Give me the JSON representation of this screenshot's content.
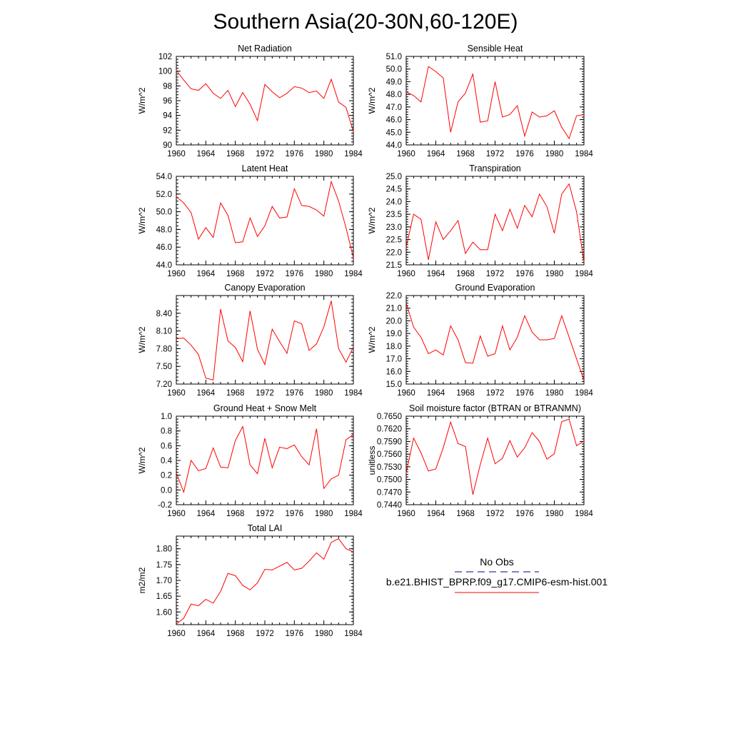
{
  "title": "Southern Asia(20-30N,60-120E)",
  "colors": {
    "model": "#ff0000",
    "obs": "#000080"
  },
  "legend": {
    "obs_label": "No Obs",
    "model_label": "b.e21.BHIST_BPRP.f09_g17.CMIP6-esm-hist.001"
  },
  "chart_data": [
    {
      "type": "line",
      "title": "Net Radiation",
      "ylabel": "W/m^2",
      "xlim": [
        1960,
        1984
      ],
      "ylim": [
        90,
        102
      ],
      "xticks": [
        "1960",
        "1964",
        "1968",
        "1972",
        "1976",
        "1980",
        "1984"
      ],
      "yticks": [
        "90",
        "92",
        "94",
        "96",
        "98",
        "100",
        "102"
      ],
      "x": [
        1960,
        1961,
        1962,
        1963,
        1964,
        1965,
        1966,
        1967,
        1968,
        1969,
        1970,
        1971,
        1972,
        1973,
        1974,
        1975,
        1976,
        1977,
        1978,
        1979,
        1980,
        1981,
        1982,
        1983,
        1984
      ],
      "series": [
        {
          "values": [
            100.1,
            98.8,
            97.6,
            97.4,
            98.3,
            97.0,
            96.3,
            97.4,
            95.2,
            97.1,
            95.5,
            93.3,
            98.2,
            97.2,
            96.4,
            97.0,
            97.9,
            97.7,
            97.1,
            97.3,
            96.3,
            98.9,
            95.8,
            95.1,
            91.8
          ]
        }
      ]
    },
    {
      "type": "line",
      "title": "Sensible Heat",
      "ylabel": "W/m^2",
      "xlim": [
        1960,
        1984
      ],
      "ylim": [
        44.0,
        51.0
      ],
      "xticks": [
        "1960",
        "1964",
        "1968",
        "1972",
        "1976",
        "1980",
        "1984"
      ],
      "yticks": [
        "44.0",
        "45.0",
        "46.0",
        "47.0",
        "48.0",
        "49.0",
        "50.0",
        "51.0"
      ],
      "x": [
        1960,
        1961,
        1962,
        1963,
        1964,
        1965,
        1966,
        1967,
        1968,
        1969,
        1970,
        1971,
        1972,
        1973,
        1974,
        1975,
        1976,
        1977,
        1978,
        1979,
        1980,
        1981,
        1982,
        1983,
        1984
      ],
      "series": [
        {
          "values": [
            48.2,
            47.9,
            47.4,
            50.2,
            49.8,
            49.3,
            45.0,
            47.4,
            48.1,
            49.6,
            45.8,
            45.9,
            49.0,
            46.2,
            46.4,
            47.1,
            44.7,
            46.6,
            46.2,
            46.3,
            46.7,
            45.4,
            44.5,
            46.3,
            46.4
          ]
        }
      ]
    },
    {
      "type": "line",
      "title": "Latent Heat",
      "ylabel": "W/m^2",
      "xlim": [
        1960,
        1984
      ],
      "ylim": [
        44.0,
        54.0
      ],
      "xticks": [
        "1960",
        "1964",
        "1968",
        "1972",
        "1976",
        "1980",
        "1984"
      ],
      "yticks": [
        "44.0",
        "46.0",
        "48.0",
        "50.0",
        "52.0",
        "54.0"
      ],
      "x": [
        1960,
        1961,
        1962,
        1963,
        1964,
        1965,
        1966,
        1967,
        1968,
        1969,
        1970,
        1971,
        1972,
        1973,
        1974,
        1975,
        1976,
        1977,
        1978,
        1979,
        1980,
        1981,
        1982,
        1983,
        1984
      ],
      "series": [
        {
          "values": [
            51.7,
            51.0,
            49.9,
            46.9,
            48.2,
            47.1,
            51.0,
            49.6,
            46.5,
            46.6,
            49.3,
            47.2,
            48.4,
            50.6,
            49.3,
            49.4,
            52.6,
            50.7,
            50.6,
            50.2,
            49.5,
            53.4,
            51.2,
            48.2,
            44.8
          ]
        }
      ]
    },
    {
      "type": "line",
      "title": "Transpiration",
      "ylabel": "W/m^2",
      "xlim": [
        1960,
        1984
      ],
      "ylim": [
        21.5,
        25.0
      ],
      "xticks": [
        "1960",
        "1964",
        "1968",
        "1972",
        "1976",
        "1980",
        "1984"
      ],
      "yticks": [
        "21.5",
        "22.0",
        "22.5",
        "23.0",
        "23.5",
        "24.0",
        "24.5",
        "25.0"
      ],
      "x": [
        1960,
        1961,
        1962,
        1963,
        1964,
        1965,
        1966,
        1967,
        1968,
        1969,
        1970,
        1971,
        1972,
        1973,
        1974,
        1975,
        1976,
        1977,
        1978,
        1979,
        1980,
        1981,
        1982,
        1983,
        1984
      ],
      "series": [
        {
          "values": [
            22.2,
            23.5,
            23.3,
            21.7,
            23.2,
            22.5,
            22.85,
            23.25,
            21.95,
            22.4,
            22.1,
            22.1,
            23.5,
            22.85,
            23.7,
            22.95,
            23.85,
            23.4,
            24.3,
            23.8,
            22.75,
            24.3,
            24.7,
            23.6,
            21.6
          ]
        }
      ]
    },
    {
      "type": "line",
      "title": "Canopy Evaporation",
      "ylabel": "W/m^2",
      "xlim": [
        1960,
        1984
      ],
      "ylim": [
        7.2,
        8.7
      ],
      "xticks": [
        "1960",
        "1964",
        "1968",
        "1972",
        "1976",
        "1980",
        "1984"
      ],
      "yticks": [
        "7.20",
        "7.50",
        "7.80",
        "8.10",
        "8.40"
      ],
      "x": [
        1960,
        1961,
        1962,
        1963,
        1964,
        1965,
        1966,
        1967,
        1968,
        1969,
        1970,
        1971,
        1972,
        1973,
        1974,
        1975,
        1976,
        1977,
        1978,
        1979,
        1980,
        1981,
        1982,
        1983,
        1984
      ],
      "series": [
        {
          "values": [
            7.97,
            7.98,
            7.86,
            7.7,
            7.3,
            7.27,
            8.47,
            7.93,
            7.82,
            7.58,
            8.44,
            7.79,
            7.53,
            8.13,
            7.92,
            7.72,
            8.27,
            8.22,
            7.77,
            7.88,
            8.17,
            8.61,
            7.8,
            7.57,
            7.83
          ]
        }
      ]
    },
    {
      "type": "line",
      "title": "Ground Evaporation",
      "ylabel": "W/m^2",
      "xlim": [
        1960,
        1984
      ],
      "ylim": [
        15.0,
        22.0
      ],
      "xticks": [
        "1960",
        "1964",
        "1968",
        "1972",
        "1976",
        "1980",
        "1984"
      ],
      "yticks": [
        "15.0",
        "16.0",
        "17.0",
        "18.0",
        "19.0",
        "20.0",
        "21.0",
        "22.0"
      ],
      "x": [
        1960,
        1961,
        1962,
        1963,
        1964,
        1965,
        1966,
        1967,
        1968,
        1969,
        1970,
        1971,
        1972,
        1973,
        1974,
        1975,
        1976,
        1977,
        1978,
        1979,
        1980,
        1981,
        1982,
        1983,
        1984
      ],
      "series": [
        {
          "values": [
            21.4,
            19.5,
            18.7,
            17.4,
            17.7,
            17.3,
            19.6,
            18.5,
            16.7,
            16.65,
            18.8,
            17.2,
            17.4,
            19.6,
            17.7,
            18.7,
            20.4,
            19.1,
            18.5,
            18.5,
            18.6,
            20.4,
            18.7,
            17.0,
            15.3
          ]
        }
      ]
    },
    {
      "type": "line",
      "title": "Ground Heat + Snow Melt",
      "ylabel": "W/m^2",
      "xlim": [
        1960,
        1984
      ],
      "ylim": [
        -0.2,
        1.0
      ],
      "xticks": [
        "1960",
        "1964",
        "1968",
        "1972",
        "1976",
        "1980",
        "1984"
      ],
      "yticks": [
        "-0.2",
        "0.0",
        "0.2",
        "0.4",
        "0.6",
        "0.8",
        "1.0"
      ],
      "x": [
        1960,
        1961,
        1962,
        1963,
        1964,
        1965,
        1966,
        1967,
        1968,
        1969,
        1970,
        1971,
        1972,
        1973,
        1974,
        1975,
        1976,
        1977,
        1978,
        1979,
        1980,
        1981,
        1982,
        1983,
        1984
      ],
      "series": [
        {
          "values": [
            0.23,
            -0.03,
            0.4,
            0.26,
            0.29,
            0.57,
            0.31,
            0.3,
            0.67,
            0.86,
            0.34,
            0.22,
            0.7,
            0.3,
            0.58,
            0.56,
            0.61,
            0.45,
            0.34,
            0.83,
            0.02,
            0.15,
            0.2,
            0.68,
            0.75
          ]
        }
      ]
    },
    {
      "type": "line",
      "title": "Soil moisture factor (BTRAN or BTRANMN)",
      "ylabel": "unitless",
      "xlim": [
        1960,
        1984
      ],
      "ylim": [
        0.744,
        0.765
      ],
      "xticks": [
        "1960",
        "1964",
        "1968",
        "1972",
        "1976",
        "1980",
        "1984"
      ],
      "yticks": [
        "0.7440",
        "0.7470",
        "0.7500",
        "0.7530",
        "0.7560",
        "0.7590",
        "0.7620",
        "0.7650"
      ],
      "x": [
        1960,
        1961,
        1962,
        1963,
        1964,
        1965,
        1966,
        1967,
        1968,
        1969,
        1970,
        1971,
        1972,
        1973,
        1974,
        1975,
        1976,
        1977,
        1978,
        1979,
        1980,
        1981,
        1982,
        1983,
        1984
      ],
      "series": [
        {
          "values": [
            0.7515,
            0.7598,
            0.7563,
            0.752,
            0.7525,
            0.7575,
            0.7636,
            0.7585,
            0.7578,
            0.7464,
            0.7535,
            0.7598,
            0.7537,
            0.755,
            0.7592,
            0.7553,
            0.7575,
            0.7611,
            0.759,
            0.7548,
            0.7561,
            0.7637,
            0.7643,
            0.758,
            0.7591
          ]
        }
      ]
    },
    {
      "type": "line",
      "title": "Total LAI",
      "ylabel": "m2/m2",
      "xlim": [
        1960,
        1984
      ],
      "ylim": [
        1.56,
        1.84
      ],
      "xticks": [
        "1960",
        "1964",
        "1968",
        "1972",
        "1976",
        "1980",
        "1984"
      ],
      "yticks": [
        "1.60",
        "1.65",
        "1.70",
        "1.75",
        "1.80"
      ],
      "x": [
        1960,
        1961,
        1962,
        1963,
        1964,
        1965,
        1966,
        1967,
        1968,
        1969,
        1970,
        1971,
        1972,
        1973,
        1974,
        1975,
        1976,
        1977,
        1978,
        1979,
        1980,
        1981,
        1982,
        1983,
        1984
      ],
      "series": [
        {
          "values": [
            1.562,
            1.58,
            1.625,
            1.62,
            1.64,
            1.628,
            1.665,
            1.722,
            1.715,
            1.684,
            1.67,
            1.692,
            1.735,
            1.733,
            1.745,
            1.757,
            1.733,
            1.738,
            1.761,
            1.787,
            1.767,
            1.82,
            1.832,
            1.8,
            1.79
          ]
        }
      ]
    }
  ]
}
